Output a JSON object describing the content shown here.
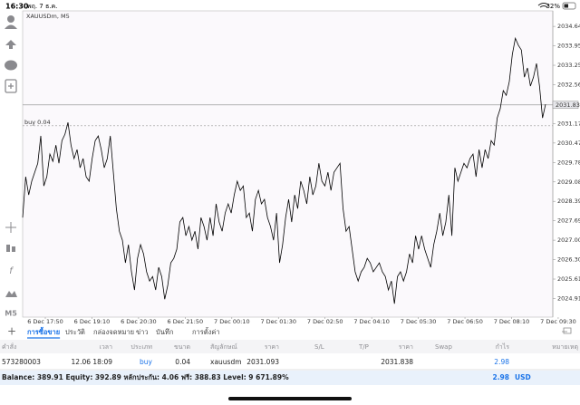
{
  "status_bar": {
    "time": "16:30",
    "date": "พฤ. 7 ธ.ค.",
    "battery": "32%"
  },
  "toolbar": {
    "timeframe": "M5"
  },
  "chart_data": {
    "type": "line",
    "title": "XAUUSDm, M5",
    "color": "#000000",
    "x_labels": [
      "6 Dec 17:50",
      "6 Dec 19:10",
      "6 Dec 20:30",
      "6 Dec 21:50",
      "7 Dec 00:10",
      "7 Dec 01:30",
      "7 Dec 02:50",
      "7 Dec 04:10",
      "7 Dec 05:30",
      "7 Dec 06:50",
      "7 Dec 08:10",
      "7 Dec 09:30"
    ],
    "values": [
      2027.81,
      2029.27,
      2028.62,
      2029.11,
      2029.43,
      2029.75,
      2030.73,
      2028.94,
      2029.27,
      2030.08,
      2029.82,
      2030.4,
      2029.75,
      2030.56,
      2030.79,
      2031.21,
      2030.4,
      2029.92,
      2030.24,
      2029.59,
      2029.92,
      2029.27,
      2029.11,
      2029.92,
      2030.56,
      2030.73,
      2030.24,
      2029.59,
      2029.92,
      2030.73,
      2029.43,
      2028.13,
      2027.32,
      2027.0,
      2026.19,
      2026.84,
      2025.87,
      2025.22,
      2026.35,
      2026.84,
      2026.51,
      2025.87,
      2025.54,
      2025.7,
      2025.22,
      2026.03,
      2025.7,
      2024.89,
      2025.38,
      2026.19,
      2026.35,
      2026.68,
      2027.65,
      2027.81,
      2027.16,
      2027.49,
      2027.0,
      2027.32,
      2026.68,
      2027.81,
      2027.49,
      2027.0,
      2027.81,
      2027.16,
      2028.3,
      2027.65,
      2027.32,
      2027.97,
      2028.3,
      2027.97,
      2028.62,
      2029.11,
      2028.78,
      2028.94,
      2027.81,
      2027.97,
      2027.32,
      2028.46,
      2028.78,
      2028.3,
      2028.46,
      2027.81,
      2027.49,
      2027.0,
      2027.97,
      2026.19,
      2026.84,
      2027.81,
      2028.46,
      2027.65,
      2028.62,
      2028.13,
      2029.11,
      2028.78,
      2028.3,
      2029.27,
      2028.62,
      2028.94,
      2029.75,
      2029.11,
      2028.94,
      2029.43,
      2028.78,
      2029.43,
      2029.59,
      2029.75,
      2028.13,
      2027.32,
      2027.49,
      2026.68,
      2025.87,
      2025.54,
      2025.87,
      2026.03,
      2026.35,
      2026.19,
      2025.87,
      2026.03,
      2026.19,
      2025.87,
      2025.7,
      2025.22,
      2025.54,
      2024.73,
      2025.7,
      2025.87,
      2025.54,
      2025.87,
      2026.51,
      2026.19,
      2027.16,
      2026.68,
      2027.16,
      2026.68,
      2026.35,
      2026.03,
      2026.84,
      2027.32,
      2027.97,
      2027.16,
      2027.65,
      2028.62,
      2027.16,
      2029.59,
      2029.11,
      2029.43,
      2029.75,
      2029.59,
      2029.92,
      2030.08,
      2029.27,
      2030.24,
      2029.59,
      2030.24,
      2029.92,
      2030.56,
      2030.4,
      2031.37,
      2031.7,
      2032.35,
      2032.18,
      2032.67,
      2033.64,
      2034.22,
      2033.97,
      2033.8,
      2032.83,
      2033.16,
      2032.51,
      2032.83,
      2033.32,
      2032.51,
      2031.37,
      2031.86
    ],
    "ylim": [
      2024.25,
      2035.2
    ],
    "yticks": [
      2024.915,
      {
        "value": 2025.61,
        "label": "2025.610"
      },
      2026.305,
      {
        "value": 2027,
        "label": "2027.000"
      },
      2027.695,
      {
        "value": 2028.39,
        "label": "2028.390"
      },
      2029.085,
      {
        "value": 2029.78,
        "label": "2029.780"
      },
      2030.475,
      {
        "value": 2031.17,
        "label": "2031.170"
      },
      {
        "value": 2032.56,
        "label": "2032.560"
      },
      2033.255,
      {
        "value": 2033.95,
        "label": "2033.950"
      },
      2034.645
    ],
    "current_price": 2031.838,
    "order_line": {
      "label": "buy 0.04",
      "value": 2031.093
    }
  },
  "tabs": [
    "การซื้อขาย",
    "ประวัติ",
    "กล่องจดหมาย",
    "ข่าว",
    "บันทึก",
    "การตั้งค่า"
  ],
  "table": {
    "columns": [
      "คำสั่ง",
      "เวลา",
      "ประเภท",
      "ขนาด",
      "สัญลักษณ์",
      "ราคา",
      "S/L",
      "T/P",
      "ราคา",
      "Swap",
      "กำไร",
      "หมายเหตุ"
    ],
    "row": {
      "order": "573280003",
      "time": "12.06 18:09",
      "type": "buy",
      "volume": "0.04",
      "symbol": "xauusdm",
      "price": "2031.093",
      "current_price": "2031.838",
      "profit": "2.98"
    }
  },
  "balance": {
    "text": "Balance: 389.91 Equity: 392.89 หลักประกัน: 4.06 ฟรี: 388.83 Level: 9 671.89%",
    "profit": "2.98",
    "currency": "USD"
  }
}
